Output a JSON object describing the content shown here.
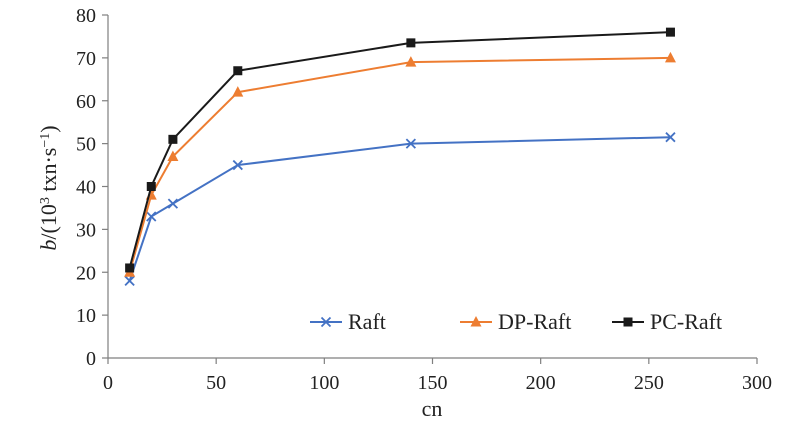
{
  "chart_data": {
    "type": "line",
    "xlabel": "cn",
    "ylabel": {
      "italic": "b",
      "prefix": "/(10",
      "sup1": "3",
      "mid": " txn·s",
      "sup2": "−1",
      "suffix": ")"
    },
    "xlim": [
      0,
      300
    ],
    "ylim": [
      0,
      80
    ],
    "xticks": [
      0,
      50,
      100,
      150,
      200,
      250,
      300
    ],
    "yticks": [
      0,
      10,
      20,
      30,
      40,
      50,
      60,
      70,
      80
    ],
    "grid": false,
    "legend_position": "bottom-right",
    "series": [
      {
        "name": "Raft",
        "color": "#4472c4",
        "marker": "x",
        "x": [
          10,
          20,
          30,
          60,
          140,
          260
        ],
        "y": [
          18,
          33,
          36,
          45,
          50,
          51.5
        ]
      },
      {
        "name": "DP-Raft",
        "color": "#ed7d31",
        "marker": "triangle",
        "x": [
          10,
          20,
          30,
          60,
          140,
          260
        ],
        "y": [
          20,
          38,
          47,
          62,
          69,
          70
        ]
      },
      {
        "name": "PC-Raft",
        "color": "#1a1a1a",
        "marker": "square",
        "x": [
          10,
          20,
          30,
          60,
          140,
          260
        ],
        "y": [
          21,
          40,
          51,
          67,
          73.5,
          76
        ]
      }
    ]
  }
}
